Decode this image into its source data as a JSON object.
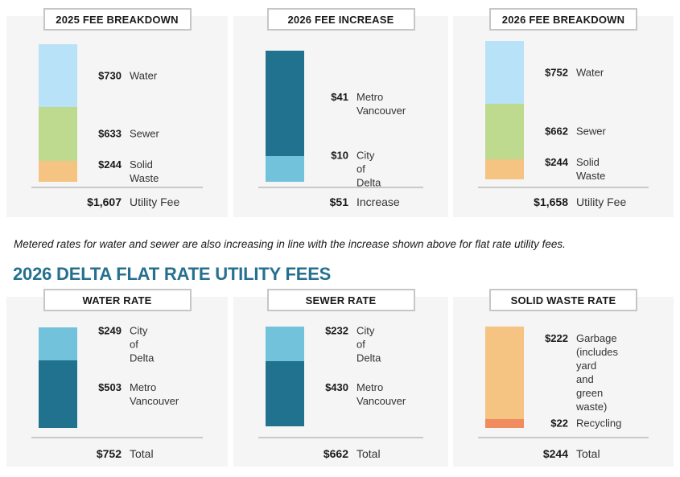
{
  "note": "Metered rates for water and sewer are also increasing in line with the increase shown above for flat rate utility fees.",
  "heading": "2026 DELTA FLAT RATE UTILITY FEES",
  "colors": {
    "water": "#B8E2F7",
    "sewer": "#BDDA8E",
    "solid_waste": "#F5C382",
    "metro_vancouver": "#20728F",
    "city_of_delta": "#72C2DC",
    "garbage": "#F5C382",
    "recycling": "#F08C60",
    "heading_accent": "#26708F",
    "panel_background": "#F5F5F6",
    "divider": "#C9C9C9"
  },
  "chart_data": [
    {
      "type": "bar",
      "title": "2025 FEE BREAKDOWN",
      "stacked": true,
      "segments": [
        {
          "label": "Water",
          "amount": "$730",
          "value": 730,
          "color": "#B8E2F7"
        },
        {
          "label": "Sewer",
          "amount": "$633",
          "value": 633,
          "color": "#BDDA8E"
        },
        {
          "label": "Solid Waste",
          "amount": "$244",
          "value": 244,
          "color": "#F5C382"
        }
      ],
      "total": {
        "amount": "$1,607",
        "value": 1607,
        "label": "Utility Fee"
      }
    },
    {
      "type": "bar",
      "title": "2026 FEE INCREASE",
      "stacked": true,
      "segments": [
        {
          "label": "Metro Vancouver",
          "amount": "$41",
          "value": 41,
          "color": "#20728F"
        },
        {
          "label": "City of Delta",
          "amount": "$10",
          "value": 10,
          "color": "#72C2DC"
        }
      ],
      "total": {
        "amount": "$51",
        "value": 51,
        "label": "Increase"
      }
    },
    {
      "type": "bar",
      "title": "2026 FEE BREAKDOWN",
      "stacked": true,
      "segments": [
        {
          "label": "Water",
          "amount": "$752",
          "value": 752,
          "color": "#B8E2F7"
        },
        {
          "label": "Sewer",
          "amount": "$662",
          "value": 662,
          "color": "#BDDA8E"
        },
        {
          "label": "Solid Waste",
          "amount": "$244",
          "value": 244,
          "color": "#F5C382"
        }
      ],
      "total": {
        "amount": "$1,658",
        "value": 1658,
        "label": "Utility Fee"
      }
    },
    {
      "type": "bar",
      "title": "WATER RATE",
      "stacked": true,
      "segments": [
        {
          "label": "City of Delta",
          "amount": "$249",
          "value": 249,
          "color": "#72C2DC"
        },
        {
          "label": "Metro Vancouver",
          "amount": "$503",
          "value": 503,
          "color": "#20728F"
        }
      ],
      "total": {
        "amount": "$752",
        "value": 752,
        "label": "Total"
      }
    },
    {
      "type": "bar",
      "title": "SEWER RATE",
      "stacked": true,
      "segments": [
        {
          "label": "City of Delta",
          "amount": "$232",
          "value": 232,
          "color": "#72C2DC"
        },
        {
          "label": "Metro Vancouver",
          "amount": "$430",
          "value": 430,
          "color": "#20728F"
        }
      ],
      "total": {
        "amount": "$662",
        "value": 662,
        "label": "Total"
      }
    },
    {
      "type": "bar",
      "title": "SOLID WASTE RATE",
      "stacked": true,
      "segments": [
        {
          "label": "Garbage\n(includes yard\nand green waste)",
          "amount": "$222",
          "value": 222,
          "color": "#F5C382"
        },
        {
          "label": "Recycling",
          "amount": "$22",
          "value": 22,
          "color": "#F08C60"
        }
      ],
      "total": {
        "amount": "$244",
        "value": 244,
        "label": "Total"
      }
    }
  ]
}
